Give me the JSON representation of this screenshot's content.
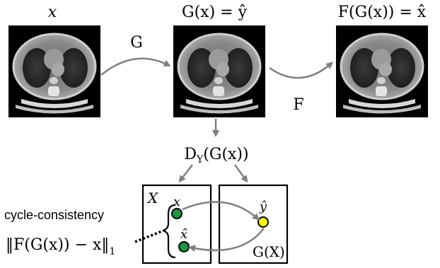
{
  "images": {
    "x": {
      "label_top": "x",
      "image_name": "ct-scan-input"
    },
    "y_hat": {
      "label_top": "G(x) = ŷ",
      "image_name": "ct-scan-generated"
    },
    "x_hat": {
      "label_top": "F(G(x)) = x̂",
      "image_name": "ct-scan-reconstructed"
    }
  },
  "mappings": {
    "G": "G",
    "F": "F",
    "discriminator": "D",
    "discriminator_subscript": "Y",
    "discriminator_arg": "(G(x))"
  },
  "domains": {
    "X": {
      "label": "X",
      "points": [
        "x",
        "x̂"
      ],
      "point_color": "#1a9641"
    },
    "GX": {
      "label": "G(X)",
      "points": [
        "ŷ"
      ],
      "point_color": "#ffff00"
    }
  },
  "loss": {
    "name": "cycle-consistency",
    "formula": "‖F(G(x)) − x‖",
    "subscript": "1"
  }
}
